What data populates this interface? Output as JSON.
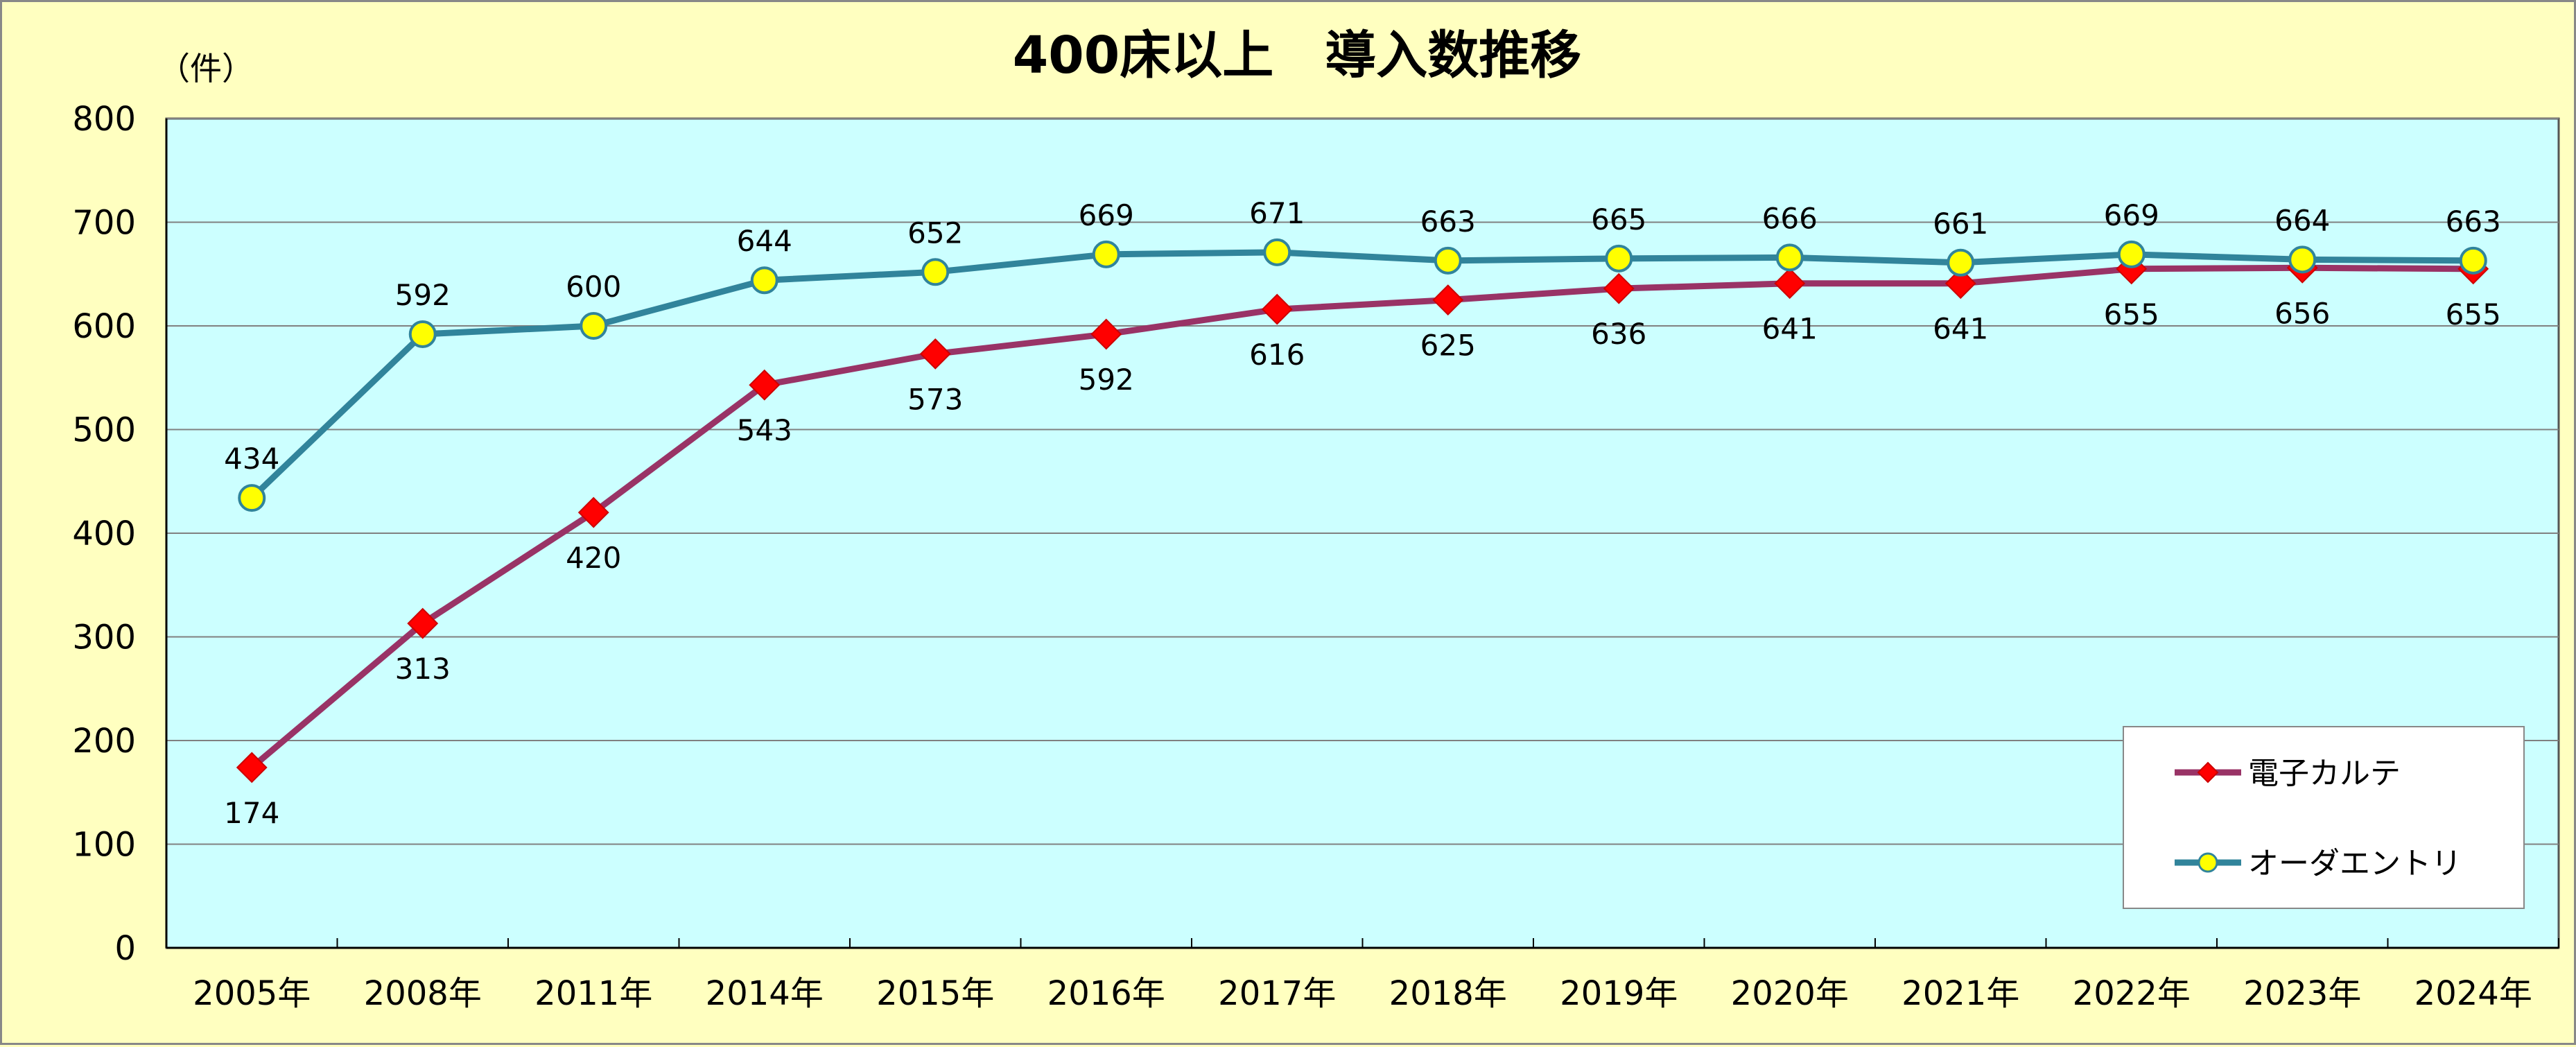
{
  "chart_data": {
    "type": "line",
    "title": "400床以上　導入数推移",
    "ylabel": "（件）",
    "xlabel": "",
    "categories": [
      "2005年",
      "2008年",
      "2011年",
      "2014年",
      "2015年",
      "2016年",
      "2017年",
      "2018年",
      "2019年",
      "2020年",
      "2021年",
      "2022年",
      "2023年",
      "2024年"
    ],
    "ylim": [
      0,
      800
    ],
    "yticks": [
      0,
      100,
      200,
      300,
      400,
      500,
      600,
      700,
      800
    ],
    "grid": true,
    "legend_position": "bottom-right",
    "series": [
      {
        "name": "電子カルテ",
        "values": [
          174,
          313,
          420,
          543,
          573,
          592,
          616,
          625,
          636,
          641,
          641,
          655,
          656,
          655
        ],
        "line_color": "#993366",
        "marker": "diamond",
        "marker_color": "#ff0000",
        "label_position": "below"
      },
      {
        "name": "オーダエントリ",
        "values": [
          434,
          592,
          600,
          644,
          652,
          669,
          671,
          663,
          665,
          666,
          661,
          669,
          664,
          663
        ],
        "line_color": "#31849b",
        "marker": "circle",
        "marker_color": "#ffff00",
        "label_position": "above"
      }
    ],
    "colors": {
      "background": "#ffffc0",
      "plot_background": "#ccffff",
      "gridline": "#808080"
    }
  }
}
